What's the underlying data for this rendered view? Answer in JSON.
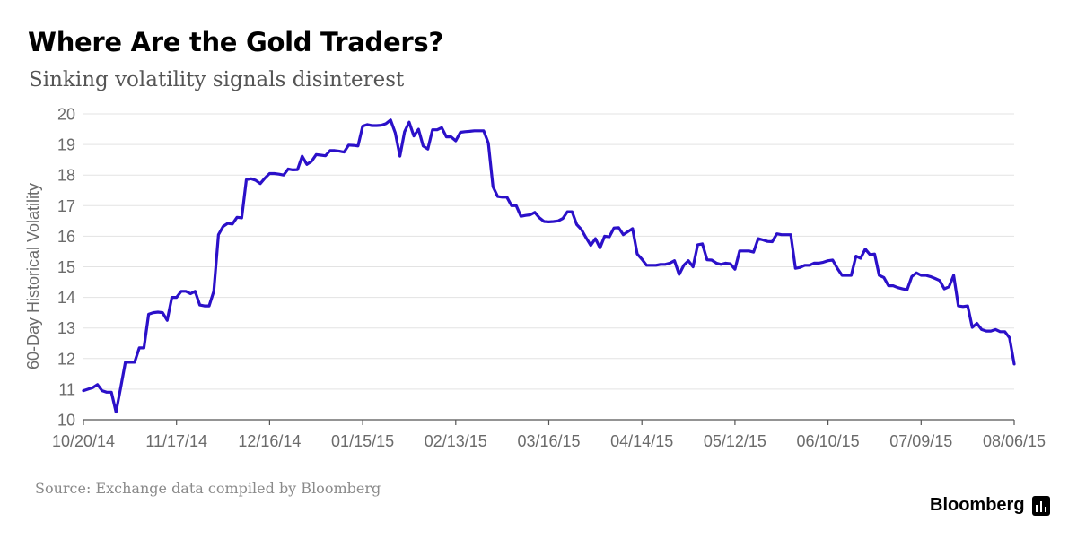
{
  "header": {
    "title": "Where Are the Gold Traders?",
    "subtitle": "Sinking volatility signals disinterest"
  },
  "footer": {
    "source": "Source: Exchange data compiled by Bloomberg",
    "brand": "Bloomberg",
    "brand_icon": "bloomberg-terminal-icon"
  },
  "colors": {
    "line": "#2b10c9",
    "grid": "#e3e3e3",
    "axis": "#555555",
    "text": "#6b6b6b"
  },
  "chart_data": {
    "type": "line",
    "title": "Where Are the Gold Traders?",
    "subtitle": "Sinking volatility signals disinterest",
    "xlabel": "",
    "ylabel": "60-Day Historical Volatility",
    "ylim": [
      10,
      20
    ],
    "yticks": [
      10,
      11,
      12,
      13,
      14,
      15,
      16,
      17,
      18,
      19,
      20
    ],
    "xtick_labels": [
      "10/20/14",
      "11/17/14",
      "12/16/14",
      "01/15/15",
      "02/13/15",
      "03/16/15",
      "04/14/15",
      "05/12/15",
      "06/10/15",
      "07/09/15",
      "08/06/15"
    ],
    "grid": "horizontal",
    "legend": "none",
    "series": [
      {
        "values": [
          10.95,
          11.0,
          11.05,
          11.15,
          10.95,
          10.9,
          10.9,
          10.25,
          11.05,
          11.88,
          11.88,
          11.88,
          12.35,
          12.35,
          13.45,
          13.5,
          13.52,
          13.5,
          13.25,
          14.0,
          14.0,
          14.2,
          14.2,
          14.12,
          14.2,
          13.75,
          13.72,
          13.72,
          14.2,
          16.05,
          16.32,
          16.42,
          16.4,
          16.62,
          16.6,
          17.85,
          17.88,
          17.83,
          17.72,
          17.9,
          18.05,
          18.05,
          18.03,
          18.0,
          18.2,
          18.17,
          18.18,
          18.62,
          18.35,
          18.45,
          18.67,
          18.65,
          18.63,
          18.8,
          18.8,
          18.78,
          18.75,
          18.98,
          18.97,
          18.95,
          19.6,
          19.65,
          19.62,
          19.62,
          19.63,
          19.68,
          19.8,
          19.38,
          18.62,
          19.42,
          19.73,
          19.28,
          19.5,
          18.95,
          18.85,
          19.48,
          19.48,
          19.55,
          19.25,
          19.25,
          19.12,
          19.4,
          19.42,
          19.43,
          19.45,
          19.45,
          19.45,
          19.05,
          17.62,
          17.3,
          17.28,
          17.28,
          17.0,
          17.0,
          16.65,
          16.68,
          16.7,
          16.78,
          16.6,
          16.48,
          16.47,
          16.48,
          16.5,
          16.58,
          16.8,
          16.8,
          16.38,
          16.22,
          15.95,
          15.7,
          15.92,
          15.62,
          16.0,
          15.98,
          16.27,
          16.28,
          16.05,
          16.15,
          16.25,
          15.42,
          15.25,
          15.05,
          15.05,
          15.05,
          15.08,
          15.08,
          15.12,
          15.2,
          14.75,
          15.05,
          15.2,
          15.0,
          15.72,
          15.75,
          15.23,
          15.22,
          15.12,
          15.08,
          15.12,
          15.1,
          14.92,
          15.52,
          15.52,
          15.52,
          15.48,
          15.92,
          15.88,
          15.83,
          15.82,
          16.08,
          16.05,
          16.05,
          16.05,
          14.95,
          14.98,
          15.05,
          15.05,
          15.12,
          15.12,
          15.15,
          15.2,
          15.22,
          14.95,
          14.72,
          14.72,
          14.72,
          15.35,
          15.28,
          15.58,
          15.4,
          15.42,
          14.72,
          14.65,
          14.38,
          14.38,
          14.32,
          14.28,
          14.25,
          14.68,
          14.8,
          14.72,
          14.72,
          14.68,
          14.62,
          14.55,
          14.28,
          14.35,
          14.72,
          13.72,
          13.7,
          13.72,
          13.02,
          13.15,
          12.95,
          12.9,
          12.9,
          12.95,
          12.88,
          12.88,
          12.68,
          11.82
        ]
      }
    ]
  }
}
